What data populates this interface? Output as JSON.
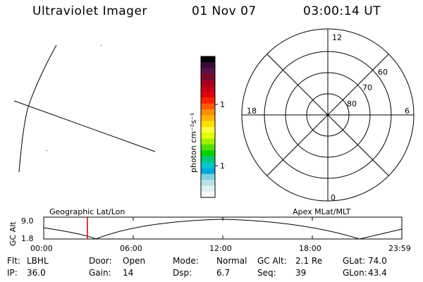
{
  "header": {
    "instrument": "Ultraviolet Imager",
    "date": "01 Nov 07",
    "time": "03:00:14 UT"
  },
  "colorbar": {
    "label": "photon cm⁻²s⁻¹",
    "ticks": [
      "100",
      "10"
    ],
    "colors": [
      "#000000",
      "#3a0a3a",
      "#5a1050",
      "#7a0a2a",
      "#a00020",
      "#c00018",
      "#e00010",
      "#ff2000",
      "#ff5a00",
      "#ff8c00",
      "#ffb400",
      "#ffe000",
      "#ffff40",
      "#e0ff00",
      "#a0f000",
      "#50e000",
      "#00d000",
      "#00c878",
      "#00c8c8",
      "#00a8e0",
      "#80d0e0",
      "#b8e0e8",
      "#e0f0f0",
      "#f4f8f8"
    ]
  },
  "polar_plot": {
    "mlt_labels": {
      "top": "12",
      "right": "6",
      "bottom": "0",
      "left": "18"
    },
    "lat_labels": [
      "60",
      "70",
      "80"
    ]
  },
  "timeline": {
    "y_axis_label": "GC Alt",
    "y_ticks": [
      "9.0",
      "1.8"
    ],
    "left_caption": "Geographic Lat/Lon",
    "right_caption": "Apex  MLat/MLT",
    "x_ticks": [
      "00:00",
      "06:00",
      "12:00",
      "18:00",
      "23:59"
    ],
    "marker_time": "03:00:14",
    "marker_color": "#cc0000"
  },
  "info_rows": [
    [
      {
        "key": "Flt:",
        "value": "LBHL"
      },
      {
        "key": "Door:",
        "value": "Open"
      },
      {
        "key": "Mode:",
        "value": "Normal"
      },
      {
        "key": "GC Alt:",
        "value": "2.1 Re"
      },
      {
        "key": "GLat:",
        "value": "74.0"
      }
    ],
    [
      {
        "key": "IP:",
        "value": "36.0"
      },
      {
        "key": "Gain:",
        "value": "14"
      },
      {
        "key": "Dsp:",
        "value": "6.7"
      },
      {
        "key": "Seq:",
        "value": "39"
      },
      {
        "key": "GLon:",
        "value": "43.4"
      }
    ]
  ]
}
